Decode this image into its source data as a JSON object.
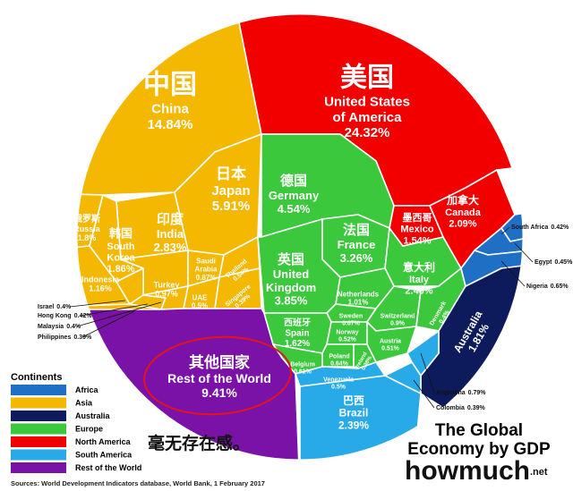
{
  "chart_data": {
    "type": "voronoi-treemap",
    "title_lines": [
      "The Global",
      "Economy by GDP"
    ],
    "annotation": "毫无存在感。",
    "source": "Sources: World Development Indicators database, World Bank, 1 February 2017",
    "brand": "howmuch",
    "brand_suffix": ".net",
    "legend_title": "Continents",
    "continents": [
      {
        "name": "Africa",
        "color": "#1f6fc5"
      },
      {
        "name": "Asia",
        "color": "#f5b800"
      },
      {
        "name": "Australia",
        "color": "#0d1a5c"
      },
      {
        "name": "Europe",
        "color": "#3cc83c"
      },
      {
        "name": "North America",
        "color": "#f20000"
      },
      {
        "name": "South America",
        "color": "#29aae8"
      },
      {
        "name": "Rest of the World",
        "color": "#7a12a8"
      }
    ],
    "cells": [
      {
        "name_zh": "中国",
        "name": [
          "China"
        ],
        "continent": "Asia",
        "value": 14.84,
        "value_label": "14.84%"
      },
      {
        "name_zh": "美国",
        "name": [
          "United States",
          "of America"
        ],
        "continent": "North America",
        "value": 24.32,
        "value_label": "24.32%"
      },
      {
        "name_zh": "日本",
        "name": [
          "Japan"
        ],
        "continent": "Asia",
        "value": 5.91,
        "value_label": "5.91%"
      },
      {
        "name_zh": "印度",
        "name": [
          "India"
        ],
        "continent": "Asia",
        "value": 2.83,
        "value_label": "2.83%"
      },
      {
        "name_zh": "俄罗斯",
        "name": [
          "Russia"
        ],
        "continent": "Asia",
        "value": 1.8,
        "value_label": "1.8%"
      },
      {
        "name_zh": "韩国",
        "name": [
          "South",
          "Korea"
        ],
        "continent": "Asia",
        "value": 1.86,
        "value_label": "1.86%"
      },
      {
        "name": [
          "Indonesia"
        ],
        "continent": "Asia",
        "value": 1.16,
        "value_label": "1.16%"
      },
      {
        "name": [
          "Turkey"
        ],
        "continent": "Asia",
        "value": 0.97,
        "value_label": "0.97%"
      },
      {
        "name": [
          "Saudi",
          "Arabia"
        ],
        "continent": "Asia",
        "value": 0.87,
        "value_label": "0.87%"
      },
      {
        "name": [
          "Thailand"
        ],
        "continent": "Asia",
        "value": 0.54,
        "value_label": "0.54%"
      },
      {
        "name": [
          "UAE"
        ],
        "continent": "Asia",
        "value": 0.5,
        "value_label": "0.5%"
      },
      {
        "name": [
          "Singapore"
        ],
        "continent": "Asia",
        "value": 0.39,
        "value_label": "0.39%"
      },
      {
        "name": [
          "Israel"
        ],
        "continent": "Asia",
        "value": 0.4,
        "value_label": "0.4%"
      },
      {
        "name": [
          "Hong Kong"
        ],
        "continent": "Asia",
        "value": 0.42,
        "value_label": "0.42%"
      },
      {
        "name": [
          "Malaysia"
        ],
        "continent": "Asia",
        "value": 0.4,
        "value_label": "0.4%"
      },
      {
        "name": [
          "Philippines"
        ],
        "continent": "Asia",
        "value": 0.39,
        "value_label": "0.39%"
      },
      {
        "name_zh": "其他国家",
        "name": [
          "Rest of the World"
        ],
        "continent": "Rest of the World",
        "value": 9.41,
        "value_label": "9.41%"
      },
      {
        "name_zh": "德国",
        "name": [
          "Germany"
        ],
        "continent": "Europe",
        "value": 4.54,
        "value_label": "4.54%"
      },
      {
        "name_zh": "法国",
        "name": [
          "France"
        ],
        "continent": "Europe",
        "value": 3.26,
        "value_label": "3.26%"
      },
      {
        "name_zh": "英国",
        "name": [
          "United",
          "Kingdom"
        ],
        "continent": "Europe",
        "value": 3.85,
        "value_label": "3.85%"
      },
      {
        "name_zh": "意大利",
        "name": [
          "Italy"
        ],
        "continent": "Europe",
        "value": 2.46,
        "value_label": "2.46%"
      },
      {
        "name": [
          "Netherlands"
        ],
        "continent": "Europe",
        "value": 1.01,
        "value_label": "1.01%"
      },
      {
        "name": [
          "Sweden"
        ],
        "continent": "Europe",
        "value": 0.67,
        "value_label": "0.67%"
      },
      {
        "name": [
          "Switzerland"
        ],
        "continent": "Europe",
        "value": 0.9,
        "value_label": "0.9%"
      },
      {
        "name": [
          "Denmark"
        ],
        "continent": "Europe",
        "value": 0.4,
        "value_label": "0.4%"
      },
      {
        "name_zh": "西班牙",
        "name": [
          "Spain"
        ],
        "continent": "Europe",
        "value": 1.62,
        "value_label": "1.62%"
      },
      {
        "name": [
          "Norway"
        ],
        "continent": "Europe",
        "value": 0.52,
        "value_label": "0.52%"
      },
      {
        "name": [
          "Austria"
        ],
        "continent": "Europe",
        "value": 0.51,
        "value_label": "0.51%"
      },
      {
        "name": [
          "Poland"
        ],
        "continent": "Europe",
        "value": 0.64,
        "value_label": "0.64%"
      },
      {
        "name": [
          "Ireland"
        ],
        "continent": "Europe",
        "value": 0.38,
        "value_label": "0.38%"
      },
      {
        "name": [
          "Belgium"
        ],
        "continent": "Europe",
        "value": 0.61,
        "value_label": "0.61%"
      },
      {
        "name_zh": "墨西哥",
        "name": [
          "Mexico"
        ],
        "continent": "North America",
        "value": 1.54,
        "value_label": "1.54%"
      },
      {
        "name_zh": "加拿大",
        "name": [
          "Canada"
        ],
        "continent": "North America",
        "value": 2.09,
        "value_label": "2.09%"
      },
      {
        "name": [
          "Australia"
        ],
        "continent": "Australia",
        "value": 1.81,
        "value_label": "1.81%"
      },
      {
        "name_zh": "巴西",
        "name": [
          "Brazil"
        ],
        "continent": "South America",
        "value": 2.39,
        "value_label": "2.39%"
      },
      {
        "name": [
          "Venezuela"
        ],
        "continent": "South America",
        "value": 0.5,
        "value_label": "0.5%"
      },
      {
        "name": [
          "Argentina"
        ],
        "continent": "South America",
        "value": 0.79,
        "value_label": "0.79%"
      },
      {
        "name": [
          "Colombia"
        ],
        "continent": "South America",
        "value": 0.39,
        "value_label": "0.39%"
      },
      {
        "name": [
          "South Africa"
        ],
        "continent": "Africa",
        "value": 0.42,
        "value_label": "0.42%"
      },
      {
        "name": [
          "Egypt"
        ],
        "continent": "Africa",
        "value": 0.45,
        "value_label": "0.45%"
      },
      {
        "name": [
          "Nigeria"
        ],
        "continent": "Africa",
        "value": 0.65,
        "value_label": "0.65%"
      }
    ]
  }
}
